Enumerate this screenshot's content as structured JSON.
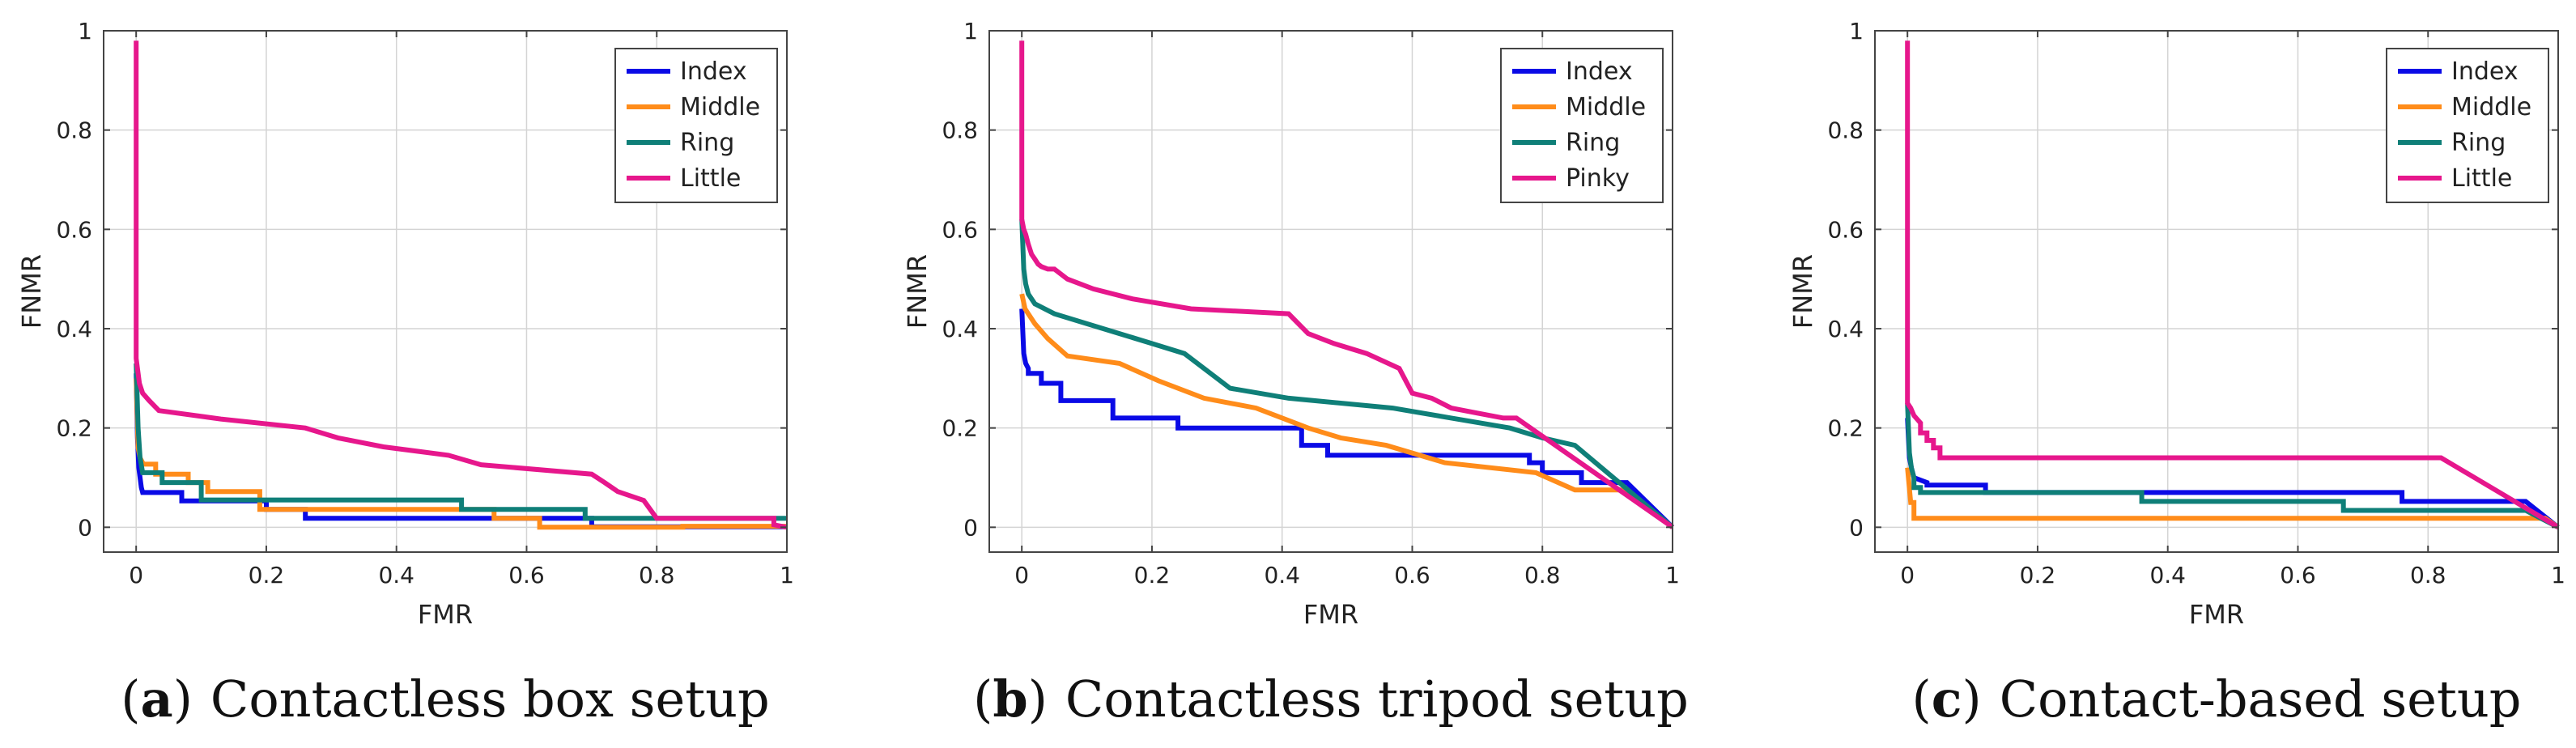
{
  "figure": {
    "colors": {
      "Index": "#0a0ae6",
      "Middle": "#ff8c1a",
      "Ring": "#0f7f78",
      "Little": "#e6178c",
      "Pinky": "#e6178c"
    }
  },
  "chart_data": [
    {
      "type": "line",
      "caption_letter": "a",
      "caption_text": "Contactless box setup",
      "xlabel": "FMR",
      "ylabel": "FNMR",
      "xlim": [
        0,
        1
      ],
      "ylim": [
        0,
        1
      ],
      "xticks": [
        0,
        0.2,
        0.4,
        0.6,
        0.8,
        1
      ],
      "yticks": [
        0,
        0.2,
        0.4,
        0.6,
        0.8,
        1
      ],
      "xtick_labels": [
        "0",
        "0.2",
        "0.4",
        "0.6",
        "0.8",
        "1"
      ],
      "ytick_labels": [
        "0",
        "0.2",
        "0.4",
        "0.6",
        "0.8",
        "1"
      ],
      "grid": true,
      "legend_position": "top-right",
      "series": [
        {
          "name": "Index",
          "x": [
            0,
            0.002,
            0.004,
            0.006,
            0.008,
            0.01,
            0.07,
            0.07,
            0.1,
            0.1,
            0.2,
            0.2,
            0.26,
            0.26,
            0.7,
            0.7,
            1
          ],
          "y": [
            0.31,
            0.18,
            0.12,
            0.1,
            0.08,
            0.07,
            0.07,
            0.053,
            0.053,
            0.053,
            0.053,
            0.036,
            0.036,
            0.018,
            0.018,
            0.001,
            0.001
          ]
        },
        {
          "name": "Middle",
          "x": [
            0,
            0.003,
            0.006,
            0.01,
            0.01,
            0.03,
            0.03,
            0.08,
            0.08,
            0.11,
            0.11,
            0.19,
            0.19,
            0.55,
            0.55,
            0.62,
            0.62,
            0.84,
            0.84,
            1
          ],
          "y": [
            0.3,
            0.16,
            0.14,
            0.13,
            0.127,
            0.127,
            0.107,
            0.107,
            0.09,
            0.09,
            0.072,
            0.072,
            0.036,
            0.036,
            0.018,
            0.018,
            0,
            0,
            0.002,
            0.002
          ]
        },
        {
          "name": "Ring",
          "x": [
            0,
            0.003,
            0.006,
            0.01,
            0.01,
            0.04,
            0.04,
            0.1,
            0.1,
            0.5,
            0.5,
            0.69,
            0.69,
            1
          ],
          "y": [
            0.33,
            0.2,
            0.14,
            0.11,
            0.11,
            0.11,
            0.09,
            0.09,
            0.055,
            0.055,
            0.036,
            0.036,
            0.018,
            0.018
          ]
        },
        {
          "name": "Little",
          "x": [
            0,
            0,
            0.005,
            0.01,
            0.01,
            0.02,
            0.02,
            0.035,
            0.035,
            0.13,
            0.13,
            0.26,
            0.26,
            0.31,
            0.31,
            0.38,
            0.38,
            0.48,
            0.48,
            0.53,
            0.53,
            0.7,
            0.7,
            0.72,
            0.72,
            0.74,
            0.74,
            0.78,
            0.78,
            0.8,
            0.8,
            0.98,
            0.98,
            1
          ],
          "y": [
            0.98,
            0.34,
            0.29,
            0.27,
            0.27,
            0.255,
            0.255,
            0.235,
            0.235,
            0.218,
            0.218,
            0.2,
            0.2,
            0.18,
            0.18,
            0.162,
            0.162,
            0.145,
            0.145,
            0.126,
            0.126,
            0.107,
            0.107,
            0.09,
            0.09,
            0.072,
            0.072,
            0.054,
            0.054,
            0.018,
            0.018,
            0.018,
            0.005,
            0
          ]
        }
      ],
      "legend": [
        "Index",
        "Middle",
        "Ring",
        "Little"
      ]
    },
    {
      "type": "line",
      "caption_letter": "b",
      "caption_text": "Contactless tripod setup",
      "xlabel": "FMR",
      "ylabel": "FNMR",
      "xlim": [
        0,
        1
      ],
      "ylim": [
        0,
        1
      ],
      "xticks": [
        0,
        0.2,
        0.4,
        0.6,
        0.8,
        1
      ],
      "yticks": [
        0,
        0.2,
        0.4,
        0.6,
        0.8,
        1
      ],
      "xtick_labels": [
        "0",
        "0.2",
        "0.4",
        "0.6",
        "0.8",
        "1"
      ],
      "ytick_labels": [
        "0",
        "0.2",
        "0.4",
        "0.6",
        "0.8",
        "1"
      ],
      "grid": true,
      "legend_position": "top-right",
      "series": [
        {
          "name": "Index",
          "x": [
            0,
            0.003,
            0.006,
            0.01,
            0.01,
            0.03,
            0.03,
            0.06,
            0.06,
            0.14,
            0.14,
            0.24,
            0.24,
            0.43,
            0.43,
            0.47,
            0.47,
            0.52,
            0.52,
            0.78,
            0.78,
            0.8,
            0.8,
            0.86,
            0.86,
            0.9,
            0.9,
            0.93,
            1
          ],
          "y": [
            0.44,
            0.35,
            0.33,
            0.32,
            0.31,
            0.31,
            0.29,
            0.29,
            0.255,
            0.255,
            0.22,
            0.22,
            0.2,
            0.2,
            0.165,
            0.165,
            0.145,
            0.145,
            0.145,
            0.145,
            0.13,
            0.13,
            0.11,
            0.11,
            0.09,
            0.09,
            0.09,
            0.09,
            0
          ]
        },
        {
          "name": "Middle",
          "x": [
            0,
            0.005,
            0.01,
            0.02,
            0.02,
            0.04,
            0.04,
            0.07,
            0.07,
            0.15,
            0.15,
            0.21,
            0.21,
            0.28,
            0.28,
            0.36,
            0.36,
            0.44,
            0.44,
            0.49,
            0.49,
            0.56,
            0.56,
            0.65,
            0.65,
            0.79,
            0.79,
            0.85,
            0.85,
            0.93,
            1
          ],
          "y": [
            0.47,
            0.44,
            0.43,
            0.41,
            0.41,
            0.38,
            0.38,
            0.345,
            0.345,
            0.33,
            0.33,
            0.295,
            0.295,
            0.26,
            0.26,
            0.24,
            0.24,
            0.2,
            0.2,
            0.18,
            0.18,
            0.165,
            0.165,
            0.13,
            0.13,
            0.11,
            0.11,
            0.075,
            0.075,
            0.075,
            0
          ]
        },
        {
          "name": "Ring",
          "x": [
            0,
            0.003,
            0.006,
            0.01,
            0.02,
            0.02,
            0.05,
            0.05,
            0.1,
            0.1,
            0.15,
            0.15,
            0.2,
            0.2,
            0.25,
            0.25,
            0.29,
            0.29,
            0.32,
            0.32,
            0.41,
            0.41,
            0.57,
            0.57,
            0.66,
            0.66,
            0.75,
            0.75,
            0.8,
            0.8,
            0.85,
            0.85,
            0.9,
            1
          ],
          "y": [
            0.62,
            0.52,
            0.49,
            0.47,
            0.45,
            0.45,
            0.43,
            0.43,
            0.41,
            0.41,
            0.39,
            0.39,
            0.37,
            0.37,
            0.35,
            0.35,
            0.31,
            0.31,
            0.28,
            0.28,
            0.26,
            0.26,
            0.24,
            0.24,
            0.22,
            0.22,
            0.2,
            0.2,
            0.18,
            0.18,
            0.165,
            0.165,
            0.11,
            0
          ]
        },
        {
          "name": "Pinky",
          "x": [
            0,
            0,
            0.003,
            0.006,
            0.01,
            0.015,
            0.02,
            0.025,
            0.03,
            0.04,
            0.05,
            0.07,
            0.07,
            0.11,
            0.11,
            0.17,
            0.17,
            0.26,
            0.26,
            0.41,
            0.41,
            0.44,
            0.44,
            0.48,
            0.48,
            0.53,
            0.53,
            0.58,
            0.58,
            0.6,
            0.6,
            0.63,
            0.63,
            0.66,
            0.66,
            0.7,
            0.7,
            0.74,
            0.74,
            0.76,
            1
          ],
          "y": [
            0.98,
            0.62,
            0.6,
            0.59,
            0.57,
            0.55,
            0.54,
            0.53,
            0.525,
            0.52,
            0.52,
            0.5,
            0.5,
            0.48,
            0.48,
            0.46,
            0.46,
            0.44,
            0.44,
            0.43,
            0.43,
            0.39,
            0.39,
            0.37,
            0.37,
            0.35,
            0.35,
            0.32,
            0.32,
            0.27,
            0.27,
            0.26,
            0.26,
            0.24,
            0.24,
            0.23,
            0.23,
            0.22,
            0.22,
            0.22,
            0
          ]
        }
      ],
      "legend": [
        "Index",
        "Middle",
        "Ring",
        "Pinky"
      ]
    },
    {
      "type": "line",
      "caption_letter": "c",
      "caption_text": "Contact-based setup",
      "xlabel": "FMR",
      "ylabel": "FNMR",
      "xlim": [
        0,
        1
      ],
      "ylim": [
        0,
        1
      ],
      "xticks": [
        0,
        0.2,
        0.4,
        0.6,
        0.8,
        1
      ],
      "yticks": [
        0,
        0.2,
        0.4,
        0.6,
        0.8,
        1
      ],
      "xtick_labels": [
        "0",
        "0.2",
        "0.4",
        "0.6",
        "0.8",
        "1"
      ],
      "ytick_labels": [
        "0",
        "0.2",
        "0.4",
        "0.6",
        "0.8",
        "1"
      ],
      "grid": true,
      "legend_position": "top-right",
      "series": [
        {
          "name": "Index",
          "x": [
            0,
            0.003,
            0.006,
            0.01,
            0.03,
            0.03,
            0.12,
            0.12,
            0.76,
            0.76,
            0.95,
            1
          ],
          "y": [
            0.22,
            0.14,
            0.12,
            0.1,
            0.09,
            0.085,
            0.085,
            0.07,
            0.07,
            0.052,
            0.052,
            0
          ]
        },
        {
          "name": "Middle",
          "x": [
            0,
            0.005,
            0.01,
            0.01,
            0.98,
            1
          ],
          "y": [
            0.12,
            0.05,
            0.05,
            0.018,
            0.018,
            0
          ]
        },
        {
          "name": "Ring",
          "x": [
            0,
            0.003,
            0.006,
            0.01,
            0.01,
            0.02,
            0.02,
            0.36,
            0.36,
            0.67,
            0.67,
            0.95,
            1
          ],
          "y": [
            0.25,
            0.15,
            0.12,
            0.1,
            0.08,
            0.08,
            0.07,
            0.07,
            0.052,
            0.052,
            0.034,
            0.034,
            0
          ]
        },
        {
          "name": "Little",
          "x": [
            0,
            0,
            0.005,
            0.01,
            0.02,
            0.02,
            0.03,
            0.03,
            0.04,
            0.04,
            0.05,
            0.05,
            0.82,
            1
          ],
          "y": [
            0.98,
            0.25,
            0.24,
            0.225,
            0.21,
            0.19,
            0.19,
            0.175,
            0.175,
            0.16,
            0.16,
            0.14,
            0.14,
            0
          ]
        }
      ],
      "legend": [
        "Index",
        "Middle",
        "Ring",
        "Little"
      ]
    }
  ]
}
